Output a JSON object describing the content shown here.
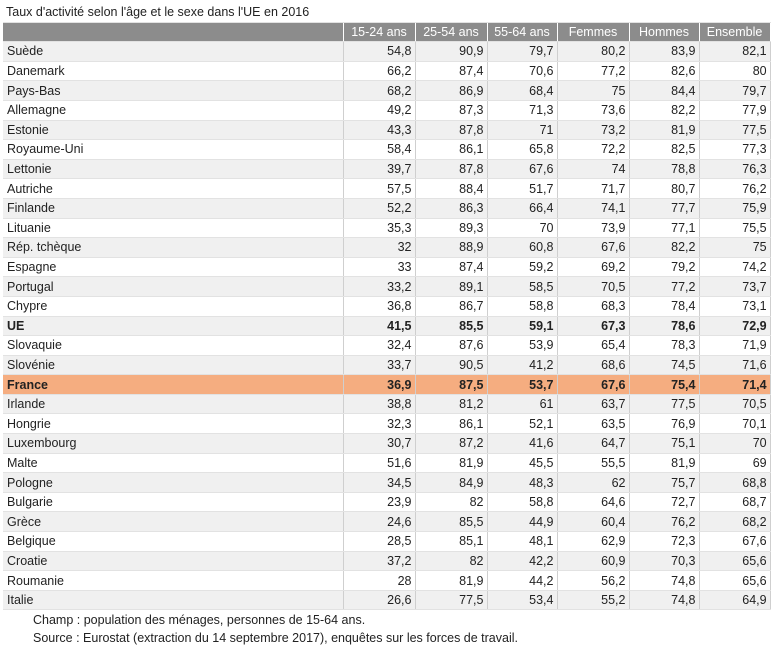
{
  "title": "Taux d'activité selon l'âge et le sexe dans l'UE en 2016",
  "headers": [
    "15-24 ans",
    "25-54 ans",
    "55-64 ans",
    "Femmes",
    "Hommes",
    "Ensemble"
  ],
  "rows": [
    {
      "name": "Suède",
      "v": [
        "54,8",
        "90,9",
        "79,7",
        "80,2",
        "83,9",
        "82,1"
      ]
    },
    {
      "name": "Danemark",
      "v": [
        "66,2",
        "87,4",
        "70,6",
        "77,2",
        "82,6",
        "80"
      ]
    },
    {
      "name": "Pays-Bas",
      "v": [
        "68,2",
        "86,9",
        "68,4",
        "75",
        "84,4",
        "79,7"
      ]
    },
    {
      "name": "Allemagne",
      "v": [
        "49,2",
        "87,3",
        "71,3",
        "73,6",
        "82,2",
        "77,9"
      ]
    },
    {
      "name": "Estonie",
      "v": [
        "43,3",
        "87,8",
        "71",
        "73,2",
        "81,9",
        "77,5"
      ]
    },
    {
      "name": "Royaume-Uni",
      "v": [
        "58,4",
        "86,1",
        "65,8",
        "72,2",
        "82,5",
        "77,3"
      ]
    },
    {
      "name": "Lettonie",
      "v": [
        "39,7",
        "87,8",
        "67,6",
        "74",
        "78,8",
        "76,3"
      ]
    },
    {
      "name": "Autriche",
      "v": [
        "57,5",
        "88,4",
        "51,7",
        "71,7",
        "80,7",
        "76,2"
      ]
    },
    {
      "name": "Finlande",
      "v": [
        "52,2",
        "86,3",
        "66,4",
        "74,1",
        "77,7",
        "75,9"
      ]
    },
    {
      "name": "Lituanie",
      "v": [
        "35,3",
        "89,3",
        "70",
        "73,9",
        "77,1",
        "75,5"
      ]
    },
    {
      "name": "Rép. tchèque",
      "v": [
        "32",
        "88,9",
        "60,8",
        "67,6",
        "82,2",
        "75"
      ]
    },
    {
      "name": "Espagne",
      "v": [
        "33",
        "87,4",
        "59,2",
        "69,2",
        "79,2",
        "74,2"
      ]
    },
    {
      "name": "Portugal",
      "v": [
        "33,2",
        "89,1",
        "58,5",
        "70,5",
        "77,2",
        "73,7"
      ]
    },
    {
      "name": "Chypre",
      "v": [
        "36,8",
        "86,7",
        "58,8",
        "68,3",
        "78,4",
        "73,1"
      ]
    },
    {
      "name": "UE",
      "v": [
        "41,5",
        "85,5",
        "59,1",
        "67,3",
        "78,6",
        "72,9"
      ],
      "bold": true
    },
    {
      "name": "Slovaquie",
      "v": [
        "32,4",
        "87,6",
        "53,9",
        "65,4",
        "78,3",
        "71,9"
      ]
    },
    {
      "name": "Slovénie",
      "v": [
        "33,7",
        "90,5",
        "41,2",
        "68,6",
        "74,5",
        "71,6"
      ]
    },
    {
      "name": "France",
      "v": [
        "36,9",
        "87,5",
        "53,7",
        "67,6",
        "75,4",
        "71,4"
      ],
      "highlight": true
    },
    {
      "name": "Irlande",
      "v": [
        "38,8",
        "81,2",
        "61",
        "63,7",
        "77,5",
        "70,5"
      ]
    },
    {
      "name": "Hongrie",
      "v": [
        "32,3",
        "86,1",
        "52,1",
        "63,5",
        "76,9",
        "70,1"
      ]
    },
    {
      "name": "Luxembourg",
      "v": [
        "30,7",
        "87,2",
        "41,6",
        "64,7",
        "75,1",
        "70"
      ]
    },
    {
      "name": "Malte",
      "v": [
        "51,6",
        "81,9",
        "45,5",
        "55,5",
        "81,9",
        "69"
      ]
    },
    {
      "name": "Pologne",
      "v": [
        "34,5",
        "84,9",
        "48,3",
        "62",
        "75,7",
        "68,8"
      ]
    },
    {
      "name": "Bulgarie",
      "v": [
        "23,9",
        "82",
        "58,8",
        "64,6",
        "72,7",
        "68,7"
      ]
    },
    {
      "name": "Grèce",
      "v": [
        "24,6",
        "85,5",
        "44,9",
        "60,4",
        "76,2",
        "68,2"
      ]
    },
    {
      "name": "Belgique",
      "v": [
        "28,5",
        "85,1",
        "48,1",
        "62,9",
        "72,3",
        "67,6"
      ]
    },
    {
      "name": "Croatie",
      "v": [
        "37,2",
        "82",
        "42,2",
        "60,9",
        "70,3",
        "65,6"
      ]
    },
    {
      "name": "Roumanie",
      "v": [
        "28",
        "81,9",
        "44,2",
        "56,2",
        "74,8",
        "65,6"
      ]
    },
    {
      "name": "Italie",
      "v": [
        "26,6",
        "77,5",
        "53,4",
        "55,2",
        "74,8",
        "64,9"
      ]
    }
  ],
  "notes": [
    "Champ : population des ménages, personnes de 15-64 ans.",
    "Source : Eurostat (extraction du 14 septembre 2017), enquêtes sur les forces de travail."
  ],
  "colors": {
    "header_bg": "#8c8c8c",
    "highlight_bg": "#f5ad80",
    "stripe_bg": "#f0f0f0"
  }
}
